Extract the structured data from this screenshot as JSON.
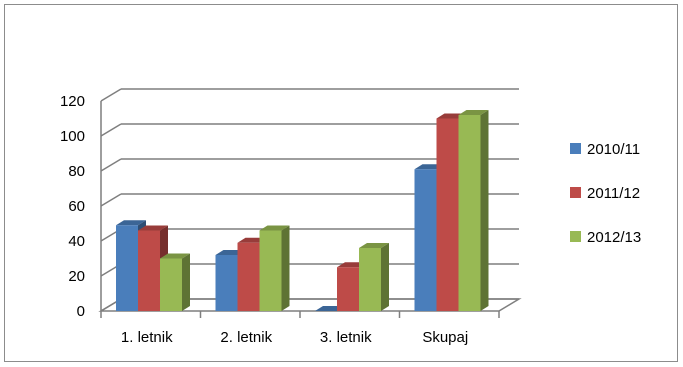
{
  "chart_data": {
    "type": "bar",
    "title": "",
    "xlabel": "",
    "ylabel": "",
    "categories": [
      "1. letnik",
      "2. letnik",
      "3. letnik",
      "Skupaj"
    ],
    "series": [
      {
        "name": "2010/11",
        "values": [
          49,
          32,
          0,
          81
        ],
        "color": "#4a7ebb"
      },
      {
        "name": "2011/12",
        "values": [
          46,
          39,
          25,
          110
        ],
        "color": "#be4b48"
      },
      {
        "name": "2012/13",
        "values": [
          30,
          46,
          36,
          112
        ],
        "color": "#98b954"
      }
    ],
    "ylim": [
      0,
      120
    ],
    "yticks": [
      0,
      20,
      40,
      60,
      80,
      100,
      120
    ],
    "grid": true,
    "legend": "right",
    "style": "3d-clustered-column"
  }
}
